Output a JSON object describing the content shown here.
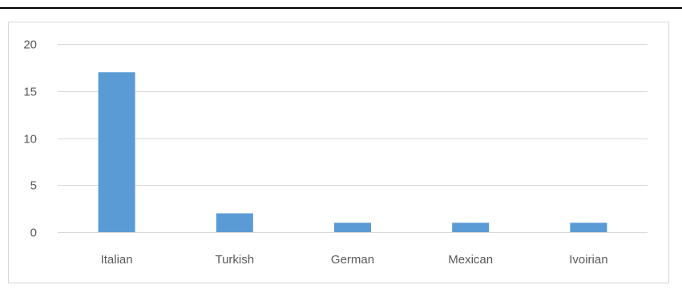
{
  "chart_data": {
    "type": "bar",
    "categories": [
      "Italian",
      "Turkish",
      "German",
      "Mexican",
      "Ivoirian"
    ],
    "values": [
      17,
      2,
      1,
      1,
      1
    ],
    "title": "",
    "xlabel": "",
    "ylabel": "",
    "ylim": [
      0,
      20
    ],
    "yticks": [
      0,
      5,
      10,
      15,
      20
    ],
    "grid": true,
    "legend": "none",
    "bar_color": "#5b9bd5",
    "grid_color": "#d9d9d9"
  }
}
